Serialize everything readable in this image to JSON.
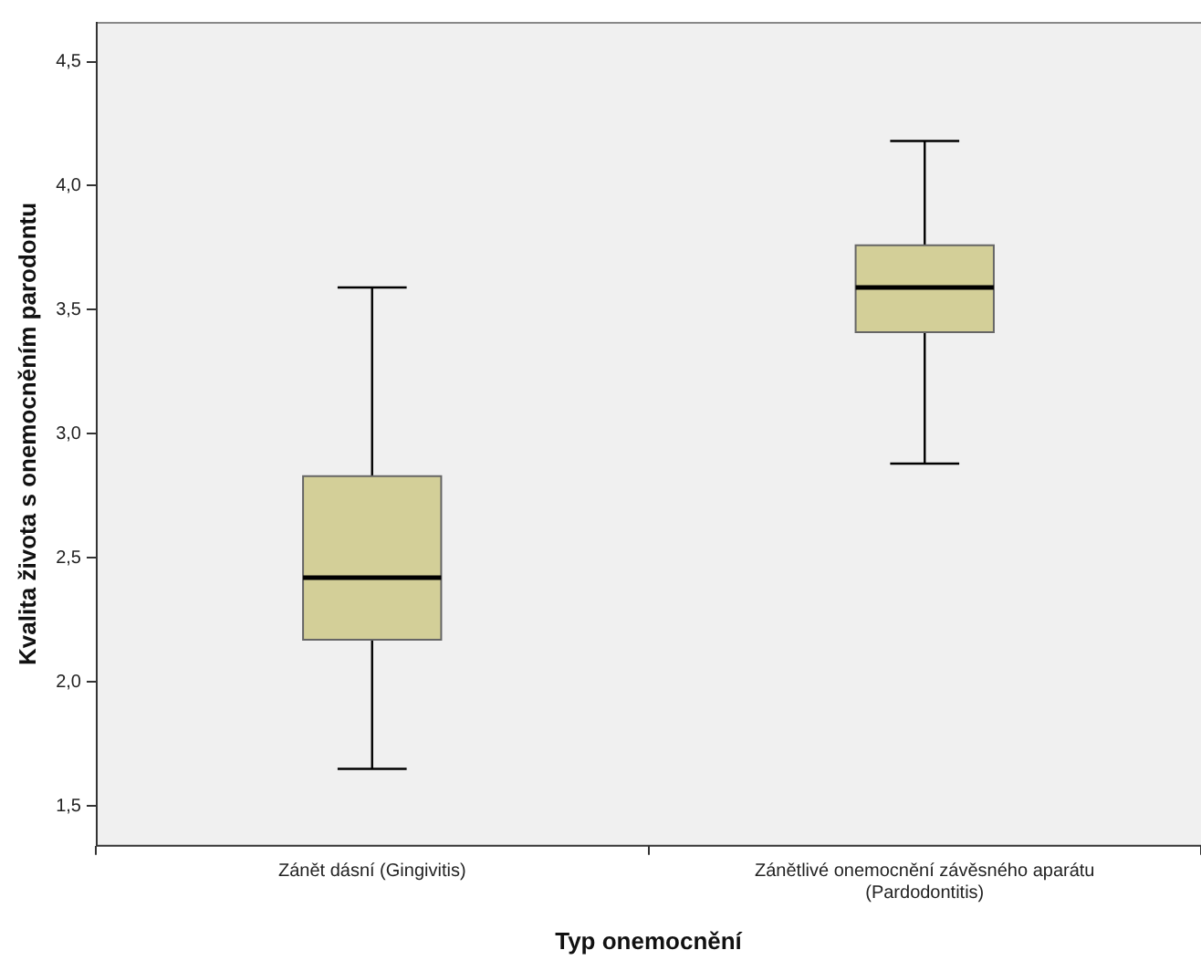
{
  "chart_data": {
    "type": "box",
    "xlabel": "Typ onemocnění",
    "ylabel": "Kvalita života s onemocněním parodontu",
    "categories": [
      "Zánět dásní (Gingivitis)",
      "Zánětlivé onemocnění závěsného aparátu (Pardodontitis)"
    ],
    "boxes": [
      {
        "low": 1.65,
        "q1": 2.17,
        "median": 2.42,
        "q3": 2.83,
        "high": 3.59
      },
      {
        "low": 2.88,
        "q1": 3.41,
        "median": 3.59,
        "q3": 3.76,
        "high": 4.18
      }
    ],
    "color": "#d3cf98",
    "ylim": [
      1.34,
      4.66
    ],
    "yticks": [
      {
        "value": 1.5,
        "label": "1,5"
      },
      {
        "value": 2,
        "label": "2,0"
      },
      {
        "value": 2.5,
        "label": "2,5"
      },
      {
        "value": 3,
        "label": "3,0"
      },
      {
        "value": 3.5,
        "label": "3,5"
      },
      {
        "value": 4,
        "label": "4,0"
      },
      {
        "value": 4.5,
        "label": "4,5"
      }
    ],
    "grid": false,
    "legend": false
  }
}
